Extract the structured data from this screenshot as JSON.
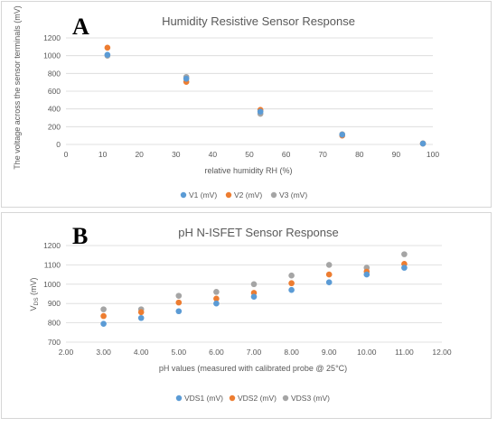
{
  "colors": {
    "blue": "#5b9bd5",
    "orange": "#ed7d31",
    "gray": "#a5a5a5"
  },
  "chart_data": [
    {
      "panel_label": "A",
      "type": "scatter",
      "title": "Humidity Resistive Sensor Response",
      "xlabel": "relative humidity RH (%)",
      "ylabel": "The voltage across the sensor terminals (mV)",
      "xlim": [
        0,
        100
      ],
      "ylim": [
        0,
        1200
      ],
      "xticks": [
        0,
        10,
        20,
        30,
        40,
        50,
        60,
        70,
        80,
        90,
        100
      ],
      "xtick_labels": [
        "0",
        "10",
        "20",
        "30",
        "40",
        "50",
        "60",
        "70",
        "80",
        "90",
        "100"
      ],
      "yticks": [
        0,
        200,
        400,
        600,
        800,
        1000,
        1200
      ],
      "ytick_labels": [
        "0",
        "200",
        "400",
        "600",
        "800",
        "1000",
        "1200"
      ],
      "grid": "horizontal",
      "legend_position": "bottom",
      "series": [
        {
          "name": "V1 (mV)",
          "color": "#5b9bd5",
          "x": [
            11.3,
            32.8,
            53.0,
            75.3,
            97.3
          ],
          "y": [
            1010,
            740,
            370,
            110,
            10
          ]
        },
        {
          "name": "V2 (mV)",
          "color": "#ed7d31",
          "x": [
            11.3,
            32.8,
            53.0,
            75.3,
            97.3
          ],
          "y": [
            1090,
            705,
            390,
            100,
            10
          ]
        },
        {
          "name": "V3 (mV)",
          "color": "#a5a5a5",
          "x": [
            11.3,
            32.8,
            53.0,
            75.3,
            97.3
          ],
          "y": [
            1000,
            760,
            345,
            115,
            12
          ]
        }
      ]
    },
    {
      "panel_label": "B",
      "type": "scatter",
      "title": "pH N-ISFET Sensor Response",
      "xlabel": "pH values (measured with calibrated probe @ 25°C)",
      "ylabel_main": "V",
      "ylabel_sub": "DS",
      "ylabel_unit": " (mV)",
      "xlim": [
        2,
        12
      ],
      "ylim": [
        700,
        1200
      ],
      "xticks": [
        2,
        3,
        4,
        5,
        6,
        7,
        8,
        9,
        10,
        11,
        12
      ],
      "xtick_labels": [
        "2.00",
        "3.00",
        "4.00",
        "5.00",
        "6.00",
        "7.00",
        "8.00",
        "9.00",
        "10.00",
        "11.00",
        "12.00"
      ],
      "yticks": [
        700,
        800,
        900,
        1000,
        1100,
        1200
      ],
      "ytick_labels": [
        "700",
        "800",
        "900",
        "1000",
        "1100",
        "1200"
      ],
      "grid": "horizontal",
      "legend_position": "bottom",
      "series": [
        {
          "name": "VDS1 (mV)",
          "color": "#5b9bd5",
          "x": [
            3,
            4,
            5,
            6,
            7,
            8,
            9,
            10,
            11
          ],
          "y": [
            795,
            825,
            860,
            900,
            935,
            970,
            1010,
            1050,
            1085
          ]
        },
        {
          "name": "VDS2 (mV)",
          "color": "#ed7d31",
          "x": [
            3,
            4,
            5,
            6,
            7,
            8,
            9,
            10,
            11
          ],
          "y": [
            835,
            855,
            905,
            925,
            955,
            1005,
            1050,
            1065,
            1105
          ]
        },
        {
          "name": "VDS3 (mV)",
          "color": "#a5a5a5",
          "x": [
            3,
            4,
            5,
            6,
            7,
            8,
            9,
            10,
            11
          ],
          "y": [
            870,
            870,
            940,
            960,
            1000,
            1045,
            1100,
            1085,
            1155
          ]
        }
      ]
    }
  ]
}
